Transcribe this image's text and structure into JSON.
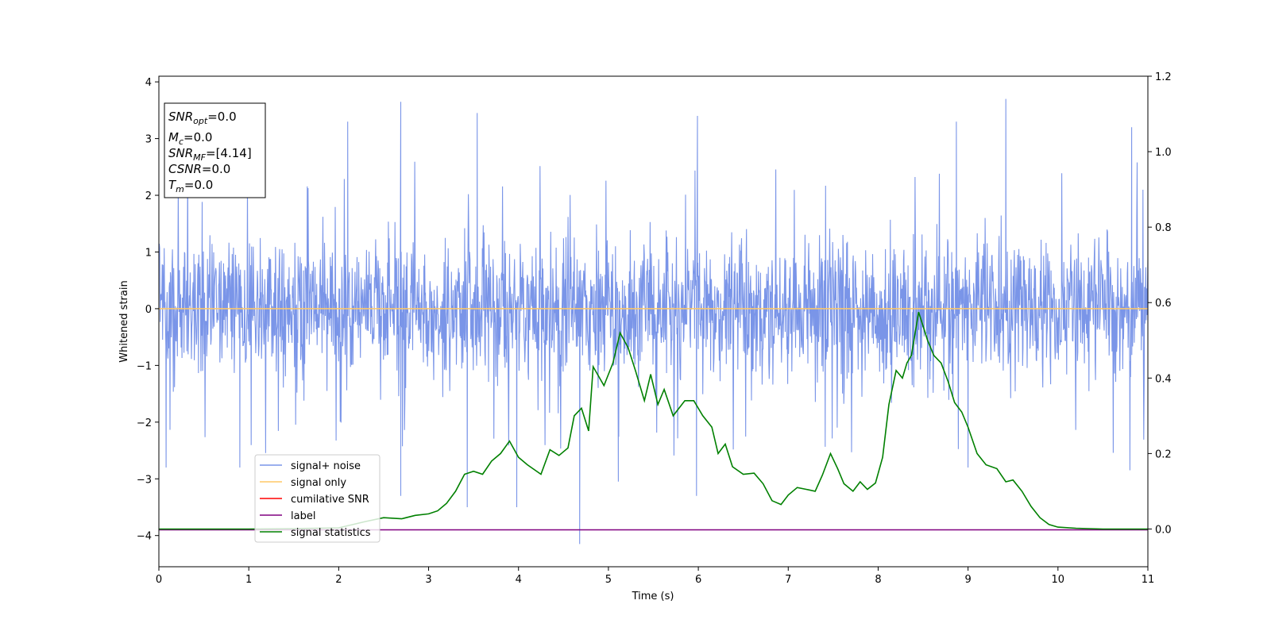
{
  "chart_data": {
    "type": "line",
    "xlabel": "Time (s)",
    "ylabel": "Whitened strain",
    "xlim": [
      0,
      11
    ],
    "ylim": [
      -4.55,
      4.1
    ],
    "y2lim": [
      -0.1,
      1.2
    ],
    "grid": false,
    "legend_position": "lower-left",
    "x_ticks": [
      "0",
      "1",
      "2",
      "3",
      "4",
      "5",
      "6",
      "7",
      "8",
      "9",
      "10",
      "11"
    ],
    "y_ticks": [
      "4",
      "3",
      "2",
      "1",
      "0",
      "−1",
      "−2",
      "−3",
      "−4"
    ],
    "y2_ticks": [
      "1.2",
      "1.0",
      "0.8",
      "0.6",
      "0.4",
      "0.2",
      "0.0"
    ],
    "info_box": {
      "snr_opt": {
        "main": "SNR",
        "sub": "opt",
        "value": "=0.0"
      },
      "mc": {
        "main": "M",
        "sub": "c",
        "value": "=0.0"
      },
      "snr_mf": {
        "main": "SNR",
        "sub": "MF",
        "value": "=[4.14]"
      },
      "csnr": {
        "main": "CSNR",
        "value": "=0.0"
      },
      "tm": {
        "main": "T",
        "sub": "m",
        "value": "=0.0"
      }
    },
    "series": [
      {
        "name": "signal+ noise",
        "color": "#7a95e8",
        "axis": "left",
        "style": "dense noise, approx. ±1.6 typical amplitude",
        "peaks": [
          [
            2.69,
            3.65
          ],
          [
            3.54,
            3.45
          ],
          [
            2.1,
            3.3
          ],
          [
            5.99,
            3.4
          ],
          [
            9.42,
            3.7
          ],
          [
            8.87,
            3.3
          ],
          [
            10.82,
            3.2
          ],
          [
            4.68,
            -4.15
          ],
          [
            5.11,
            -3.05
          ],
          [
            5.98,
            -3.3
          ],
          [
            3.43,
            -3.5
          ],
          [
            3.98,
            -3.5
          ],
          [
            0.9,
            -2.8
          ],
          [
            0.08,
            -2.8
          ],
          [
            2.69,
            -3.3
          ],
          [
            9.0,
            -2.8
          ],
          [
            10.8,
            -2.85
          ]
        ]
      },
      {
        "name": "signal only",
        "color": "#ffc966",
        "axis": "left",
        "constant": 0.0
      },
      {
        "name": "cumilative SNR",
        "color": "#ff0000",
        "axis": "right",
        "values": []
      },
      {
        "name": "label",
        "color": "#800080",
        "axis": "left",
        "constant": -3.9
      },
      {
        "name": "signal statistics",
        "color": "#008000",
        "axis": "right",
        "points": [
          [
            0.0,
            0.0
          ],
          [
            0.5,
            0.0
          ],
          [
            1.0,
            0.0
          ],
          [
            1.5,
            0.001
          ],
          [
            2.0,
            0.003
          ],
          [
            2.3,
            0.02
          ],
          [
            2.5,
            0.03
          ],
          [
            2.7,
            0.027
          ],
          [
            2.85,
            0.036
          ],
          [
            3.0,
            0.04
          ],
          [
            3.1,
            0.048
          ],
          [
            3.2,
            0.068
          ],
          [
            3.3,
            0.1
          ],
          [
            3.4,
            0.145
          ],
          [
            3.5,
            0.153
          ],
          [
            3.6,
            0.145
          ],
          [
            3.7,
            0.18
          ],
          [
            3.8,
            0.2
          ],
          [
            3.9,
            0.233
          ],
          [
            4.0,
            0.19
          ],
          [
            4.1,
            0.17
          ],
          [
            4.25,
            0.145
          ],
          [
            4.35,
            0.21
          ],
          [
            4.45,
            0.195
          ],
          [
            4.55,
            0.215
          ],
          [
            4.62,
            0.3
          ],
          [
            4.7,
            0.32
          ],
          [
            4.78,
            0.26
          ],
          [
            4.83,
            0.43
          ],
          [
            4.95,
            0.38
          ],
          [
            5.05,
            0.44
          ],
          [
            5.13,
            0.52
          ],
          [
            5.22,
            0.48
          ],
          [
            5.3,
            0.42
          ],
          [
            5.4,
            0.34
          ],
          [
            5.47,
            0.41
          ],
          [
            5.55,
            0.33
          ],
          [
            5.62,
            0.37
          ],
          [
            5.72,
            0.3
          ],
          [
            5.85,
            0.34
          ],
          [
            5.95,
            0.34
          ],
          [
            6.05,
            0.3
          ],
          [
            6.15,
            0.27
          ],
          [
            6.22,
            0.2
          ],
          [
            6.3,
            0.225
          ],
          [
            6.38,
            0.165
          ],
          [
            6.5,
            0.145
          ],
          [
            6.62,
            0.148
          ],
          [
            6.72,
            0.12
          ],
          [
            6.82,
            0.075
          ],
          [
            6.92,
            0.065
          ],
          [
            7.0,
            0.09
          ],
          [
            7.1,
            0.11
          ],
          [
            7.2,
            0.105
          ],
          [
            7.3,
            0.1
          ],
          [
            7.38,
            0.143
          ],
          [
            7.47,
            0.2
          ],
          [
            7.55,
            0.16
          ],
          [
            7.62,
            0.12
          ],
          [
            7.72,
            0.1
          ],
          [
            7.8,
            0.125
          ],
          [
            7.88,
            0.105
          ],
          [
            7.97,
            0.122
          ],
          [
            8.05,
            0.19
          ],
          [
            8.12,
            0.33
          ],
          [
            8.2,
            0.42
          ],
          [
            8.27,
            0.4
          ],
          [
            8.32,
            0.44
          ],
          [
            8.37,
            0.46
          ],
          [
            8.45,
            0.575
          ],
          [
            8.55,
            0.5
          ],
          [
            8.62,
            0.46
          ],
          [
            8.7,
            0.44
          ],
          [
            8.78,
            0.39
          ],
          [
            8.85,
            0.335
          ],
          [
            8.93,
            0.31
          ],
          [
            9.0,
            0.27
          ],
          [
            9.1,
            0.2
          ],
          [
            9.2,
            0.17
          ],
          [
            9.32,
            0.16
          ],
          [
            9.42,
            0.125
          ],
          [
            9.5,
            0.13
          ],
          [
            9.6,
            0.1
          ],
          [
            9.7,
            0.06
          ],
          [
            9.8,
            0.03
          ],
          [
            9.9,
            0.012
          ],
          [
            10.0,
            0.005
          ],
          [
            10.2,
            0.002
          ],
          [
            10.5,
            0.0
          ],
          [
            11.0,
            0.0
          ]
        ]
      }
    ]
  }
}
